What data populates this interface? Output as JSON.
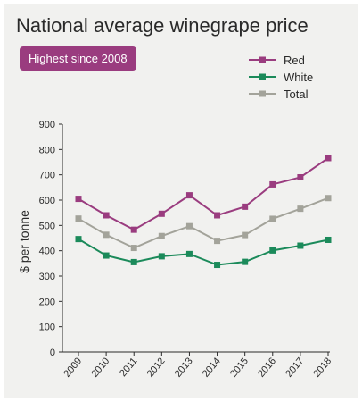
{
  "title": "National average winegrape price",
  "badge": "Highest since 2008",
  "colors": {
    "red": "#9a3c7f",
    "white": "#1b8a5a",
    "total": "#a3a39a",
    "badge": "#9a3c7f",
    "panel": "#f1f1ef"
  },
  "chart_data": {
    "type": "line",
    "ylabel": "$ per tonne",
    "xlabel": "",
    "ylim": [
      0,
      900
    ],
    "yticks": [
      0,
      100,
      200,
      300,
      400,
      500,
      600,
      700,
      800,
      900
    ],
    "x": [
      "2009",
      "2010",
      "2011",
      "2012",
      "2013",
      "2014",
      "2015",
      "2016",
      "2017",
      "2018"
    ],
    "grid": false,
    "legend": "top-right",
    "series": [
      {
        "name": "Red",
        "color": "#9a3c7f",
        "values": [
          605,
          540,
          483,
          546,
          619,
          540,
          574,
          662,
          690,
          766
        ]
      },
      {
        "name": "White",
        "color": "#1b8a5a",
        "values": [
          446,
          381,
          355,
          378,
          387,
          344,
          356,
          401,
          420,
          443
        ]
      },
      {
        "name": "Total",
        "color": "#a3a39a",
        "values": [
          527,
          463,
          411,
          458,
          497,
          439,
          462,
          526,
          566,
          608
        ]
      }
    ]
  }
}
